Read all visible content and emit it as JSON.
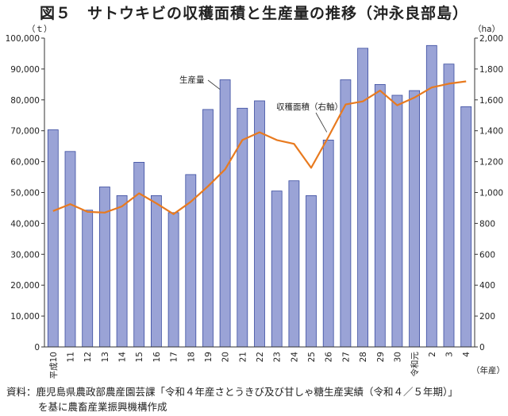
{
  "title": "図５　サトウキビの収穫面積と生産量の推移（沖永良部島）",
  "source": {
    "line1": "資料：鹿児島県農政部農産園芸課「令和４年産さとうきび及び甘しゃ糖生産実績（令和４／５年期）」",
    "line2": "を基に農畜産業振興機構作成"
  },
  "colors": {
    "bar": "#9aa3d6",
    "bar_stroke": "#3b4da0",
    "line": "#e87a1f"
  },
  "chart_data": {
    "type": "bar",
    "categories": [
      "平成10",
      "11",
      "12",
      "13",
      "14",
      "15",
      "16",
      "17",
      "18",
      "19",
      "20",
      "21",
      "22",
      "23",
      "24",
      "25",
      "26",
      "27",
      "28",
      "29",
      "30",
      "令和元",
      "2",
      "3",
      "4"
    ],
    "y_left": {
      "unit": "（ｔ）",
      "ylim": [
        0,
        100000
      ],
      "ticks": [
        "0",
        "10,000",
        "20,000",
        "30,000",
        "40,000",
        "50,000",
        "60,000",
        "70,000",
        "80,000",
        "90,000",
        "100,000"
      ]
    },
    "y_right": {
      "unit": "（ha）",
      "ylim": [
        0,
        2000
      ],
      "ticks": [
        "0",
        "200",
        "400",
        "600",
        "800",
        "1,000",
        "1,200",
        "1,400",
        "1,600",
        "1,800",
        "2,000"
      ]
    },
    "x_unit": "（年産）",
    "series": [
      {
        "name": "生産量",
        "type": "bar",
        "axis": "left",
        "values": [
          70300,
          63300,
          44300,
          51800,
          49000,
          59800,
          49000,
          43500,
          55800,
          76900,
          86500,
          77300,
          79700,
          50500,
          53800,
          49000,
          67000,
          86500,
          96700,
          85000,
          81500,
          83000,
          97600,
          91600,
          77800
        ]
      },
      {
        "name": "収穫面積（右軸）",
        "type": "line",
        "axis": "right",
        "values": [
          880,
          925,
          875,
          870,
          910,
          995,
          930,
          860,
          940,
          1040,
          1150,
          1340,
          1390,
          1340,
          1315,
          1160,
          1360,
          1570,
          1590,
          1660,
          1565,
          1615,
          1680,
          1705,
          1720
        ]
      }
    ],
    "grid": false,
    "legend": "annotations"
  }
}
